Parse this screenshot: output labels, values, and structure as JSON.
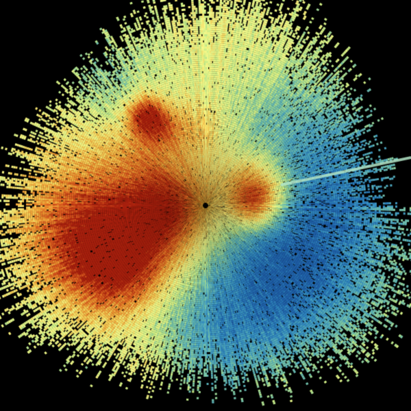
{
  "image": {
    "kind": "weather-radar-ppi",
    "background_color": "#000000",
    "colormap": [
      "#1f5fa8",
      "#2f86c0",
      "#4fa9bf",
      "#7cc7a6",
      "#c8ec86",
      "#f4f98a",
      "#f7d25a",
      "#ec9430",
      "#d8561e",
      "#a8200e"
    ]
  }
}
